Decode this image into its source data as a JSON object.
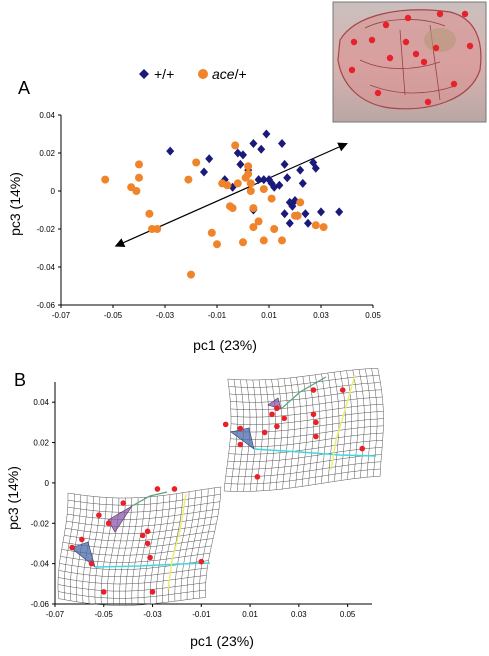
{
  "figure": {
    "panel_a_label": "A",
    "panel_b_label": "B",
    "legend": {
      "wt_label": "+/+",
      "mut_label_italic": "ace",
      "mut_label_suffix": "/+"
    },
    "colors": {
      "wt": "#1a1a7a",
      "mut": "#f0842a",
      "landmark": "#e8202a"
    }
  },
  "chart_data": [
    {
      "type": "scatter",
      "panel": "A",
      "xlabel": "pc1 (23%)",
      "ylabel": "pc3 (14%)",
      "xlim": [
        -0.07,
        0.05
      ],
      "ylim": [
        -0.06,
        0.04
      ],
      "xticks": [
        "-0.07",
        "-0.05",
        "-0.03",
        "-0.01",
        "0.01",
        "0.03",
        "0.05"
      ],
      "yticks": [
        "0.04",
        "0.02",
        "0",
        "-0.02",
        "-0.04",
        "-0.06"
      ],
      "arrow": {
        "from": [
          -0.049,
          -0.029
        ],
        "to": [
          0.04,
          0.025
        ]
      },
      "series": [
        {
          "name": "+/+",
          "marker": "diamond",
          "color": "#1a1a7a",
          "points": [
            [
              -0.028,
              0.021
            ],
            [
              -0.015,
              0.01
            ],
            [
              -0.013,
              0.017
            ],
            [
              -0.007,
              0.006
            ],
            [
              -0.004,
              0.002
            ],
            [
              -0.002,
              0.02
            ],
            [
              -0.001,
              0.014
            ],
            [
              0.0,
              0.019
            ],
            [
              0.002,
              0.011
            ],
            [
              0.004,
              0.025
            ],
            [
              0.006,
              0.006
            ],
            [
              0.007,
              0.022
            ],
            [
              0.008,
              0.006
            ],
            [
              0.009,
              0.03
            ],
            [
              0.01,
              0.006
            ],
            [
              0.011,
              0.004
            ],
            [
              0.012,
              0.002
            ],
            [
              0.014,
              0.003
            ],
            [
              0.015,
              0.025
            ],
            [
              0.016,
              0.014
            ],
            [
              0.016,
              -0.012
            ],
            [
              0.017,
              0.007
            ],
            [
              0.018,
              -0.006
            ],
            [
              0.018,
              -0.017
            ],
            [
              0.019,
              -0.008
            ],
            [
              0.02,
              -0.005
            ],
            [
              0.021,
              -0.013
            ],
            [
              0.022,
              0.011
            ],
            [
              0.023,
              0.004
            ],
            [
              0.024,
              -0.012
            ],
            [
              0.025,
              -0.017
            ],
            [
              0.027,
              0.015
            ],
            [
              0.028,
              0.012
            ],
            [
              0.03,
              -0.011
            ],
            [
              0.037,
              -0.011
            ],
            [
              0.004,
              -0.01
            ]
          ]
        },
        {
          "name": "ace/+",
          "marker": "circle",
          "color": "#f0842a",
          "points": [
            [
              -0.053,
              0.006
            ],
            [
              -0.043,
              0.002
            ],
            [
              -0.041,
              0.0
            ],
            [
              -0.04,
              0.014
            ],
            [
              -0.04,
              0.007
            ],
            [
              -0.036,
              -0.012
            ],
            [
              -0.035,
              -0.02
            ],
            [
              -0.033,
              -0.02
            ],
            [
              -0.021,
              0.006
            ],
            [
              -0.02,
              -0.044
            ],
            [
              -0.018,
              0.015
            ],
            [
              -0.012,
              -0.022
            ],
            [
              -0.01,
              -0.028
            ],
            [
              -0.008,
              0.004
            ],
            [
              -0.006,
              0.003
            ],
            [
              -0.005,
              -0.008
            ],
            [
              -0.004,
              -0.009
            ],
            [
              -0.003,
              0.024
            ],
            [
              -0.002,
              0.004
            ],
            [
              0.001,
              0.007
            ],
            [
              0.002,
              0.013
            ],
            [
              0.002,
              0.009
            ],
            [
              0.003,
              0.0
            ],
            [
              0.004,
              -0.009
            ],
            [
              0.004,
              -0.019
            ],
            [
              0.006,
              -0.016
            ],
            [
              0.008,
              -0.026
            ],
            [
              0.011,
              -0.004
            ],
            [
              0.012,
              -0.02
            ],
            [
              0.015,
              -0.026
            ],
            [
              0.02,
              -0.013
            ],
            [
              0.021,
              -0.013
            ],
            [
              0.022,
              -0.006
            ],
            [
              0.028,
              -0.018
            ],
            [
              0.031,
              -0.019
            ],
            [
              0.0,
              -0.027
            ],
            [
              0.008,
              0.001
            ],
            [
              0.003,
              0.004
            ]
          ]
        }
      ]
    },
    {
      "type": "scatter",
      "panel": "B",
      "xlabel": "pc1 (23%)",
      "ylabel": "pc3 (14%)",
      "xlim": [
        -0.07,
        0.06
      ],
      "ylim": [
        -0.06,
        0.05
      ],
      "xticks": [
        "-0.07",
        "-0.05",
        "-0.03",
        "-0.01",
        "0.01",
        "0.03",
        "0.05"
      ],
      "yticks": [
        "0.04",
        "0.02",
        "0",
        "-0.02",
        "-0.04",
        "-0.06"
      ],
      "series": [
        {
          "name": "deformation grid (positive extreme)",
          "marker": "landmark",
          "color": "#e8202a",
          "points": [
            [
              0.0,
              0.029
            ],
            [
              0.006,
              0.027
            ],
            [
              0.006,
              0.019
            ],
            [
              0.013,
              0.003
            ],
            [
              0.016,
              0.025
            ],
            [
              0.019,
              0.034
            ],
            [
              0.021,
              0.037
            ],
            [
              0.021,
              0.028
            ],
            [
              0.024,
              0.032
            ],
            [
              0.036,
              0.046
            ],
            [
              0.036,
              0.034
            ],
            [
              0.037,
              0.03
            ],
            [
              0.037,
              0.023
            ],
            [
              0.048,
              0.046
            ],
            [
              0.056,
              0.017
            ]
          ]
        },
        {
          "name": "deformation grid (negative extreme)",
          "marker": "landmark",
          "color": "#e8202a",
          "points": [
            [
              -0.063,
              -0.032
            ],
            [
              -0.059,
              -0.028
            ],
            [
              -0.055,
              -0.04
            ],
            [
              -0.052,
              -0.016
            ],
            [
              -0.05,
              -0.054
            ],
            [
              -0.048,
              -0.02
            ],
            [
              -0.042,
              -0.01
            ],
            [
              -0.034,
              -0.026
            ],
            [
              -0.032,
              -0.024
            ],
            [
              -0.032,
              -0.03
            ],
            [
              -0.031,
              -0.037
            ],
            [
              -0.03,
              -0.054
            ],
            [
              -0.028,
              -0.003
            ],
            [
              -0.021,
              -0.003
            ],
            [
              -0.01,
              -0.039
            ]
          ]
        }
      ]
    }
  ]
}
